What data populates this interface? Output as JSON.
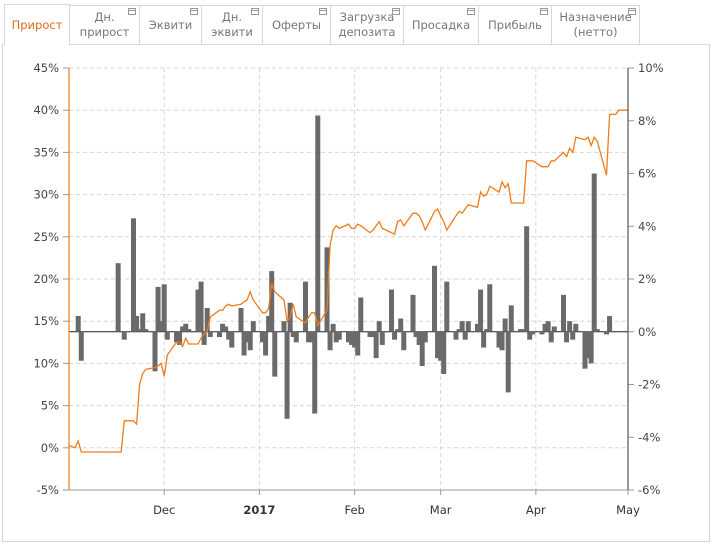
{
  "tabs": [
    {
      "label": "Прирост",
      "active": true,
      "icon": "none"
    },
    {
      "label": "Дн.\nприрост",
      "active": false,
      "icon": "minimize-icon"
    },
    {
      "label": "Эквити",
      "active": false,
      "icon": "minimize-icon"
    },
    {
      "label": "Дн.\nэквити",
      "active": false,
      "icon": "minimize-icon"
    },
    {
      "label": "Оферты",
      "active": false,
      "icon": "minimize-icon"
    },
    {
      "label": "Загрузка\nдепозита",
      "active": false,
      "icon": "minimize-icon"
    },
    {
      "label": "Просадка",
      "active": false,
      "icon": "minimize-icon"
    },
    {
      "label": "Прибыль",
      "active": false,
      "icon": "minimize-icon"
    },
    {
      "label": "Назначение\n(нетто)",
      "active": false,
      "icon": "minimize-icon"
    }
  ],
  "colors": {
    "accent": "#e06a1c",
    "line": "#f07c1c",
    "bars": "#6a6a6a",
    "grid": "#d6d6d6"
  },
  "chart_data": {
    "type": "line+bar",
    "x_range": [
      "2016-10-31",
      "2017-05-01"
    ],
    "x_ticks": [
      {
        "date": "2016-12-01",
        "label": "Dec",
        "bold": false
      },
      {
        "date": "2017-01-01",
        "label": "2017",
        "bold": true
      },
      {
        "date": "2017-02-01",
        "label": "Feb",
        "bold": false
      },
      {
        "date": "2017-03-01",
        "label": "Mar",
        "bold": false
      },
      {
        "date": "2017-04-01",
        "label": "Apr",
        "bold": false
      },
      {
        "date": "2017-05-01",
        "label": "May",
        "bold": false
      }
    ],
    "left_axis": {
      "min": -5,
      "max": 45,
      "step": 5,
      "labels": [
        "-5%",
        "0%",
        "5%",
        "10%",
        "15%",
        "20%",
        "25%",
        "30%",
        "35%",
        "40%",
        "45%"
      ]
    },
    "right_axis": {
      "min": -6,
      "max": 10,
      "step": 2,
      "labels": [
        "-6%",
        "-4%",
        "-2%",
        "0%",
        "2%",
        "4%",
        "6%",
        "8%",
        "10%"
      ]
    },
    "series": [
      {
        "kind": "line",
        "axis": "left",
        "points": [
          [
            "2016-10-31",
            0.3
          ],
          [
            "2016-11-02",
            0.0
          ],
          [
            "2016-11-03",
            0.8
          ],
          [
            "2016-11-04",
            -0.5
          ],
          [
            "2016-11-07",
            -0.5
          ],
          [
            "2016-11-10",
            -0.5
          ],
          [
            "2016-11-14",
            -0.5
          ],
          [
            "2016-11-17",
            -0.5
          ],
          [
            "2016-11-18",
            3.2
          ],
          [
            "2016-11-21",
            3.2
          ],
          [
            "2016-11-22",
            2.8
          ],
          [
            "2016-11-23",
            7.5
          ],
          [
            "2016-11-24",
            8.8
          ],
          [
            "2016-11-25",
            9.3
          ],
          [
            "2016-11-28",
            9.5
          ],
          [
            "2016-11-29",
            9.7
          ],
          [
            "2016-11-30",
            10.0
          ],
          [
            "2016-12-01",
            8.5
          ],
          [
            "2016-12-02",
            11.0
          ],
          [
            "2016-12-05",
            12.5
          ],
          [
            "2016-12-06",
            12.5
          ],
          [
            "2016-12-07",
            12.0
          ],
          [
            "2016-12-08",
            13.0
          ],
          [
            "2016-12-09",
            12.3
          ],
          [
            "2016-12-12",
            12.3
          ],
          [
            "2016-12-13",
            13.0
          ],
          [
            "2016-12-14",
            13.5
          ],
          [
            "2016-12-15",
            13.8
          ],
          [
            "2016-12-16",
            15.5
          ],
          [
            "2016-12-19",
            16.3
          ],
          [
            "2016-12-20",
            16.3
          ],
          [
            "2016-12-21",
            16.8
          ],
          [
            "2016-12-22",
            17.0
          ],
          [
            "2016-12-23",
            16.8
          ],
          [
            "2016-12-26",
            17.0
          ],
          [
            "2016-12-27",
            17.3
          ],
          [
            "2016-12-28",
            17.5
          ],
          [
            "2016-12-29",
            18.5
          ],
          [
            "2016-12-30",
            17.5
          ],
          [
            "2017-01-02",
            16.0
          ],
          [
            "2017-01-03",
            16.0
          ],
          [
            "2017-01-04",
            16.5
          ],
          [
            "2017-01-05",
            19.5
          ],
          [
            "2017-01-06",
            18.5
          ],
          [
            "2017-01-09",
            17.5
          ],
          [
            "2017-01-10",
            15.0
          ],
          [
            "2017-01-11",
            15.5
          ],
          [
            "2017-01-12",
            17.0
          ],
          [
            "2017-01-13",
            15.5
          ],
          [
            "2017-01-16",
            14.8
          ],
          [
            "2017-01-17",
            15.5
          ],
          [
            "2017-01-18",
            16.0
          ],
          [
            "2017-01-19",
            16.0
          ],
          [
            "2017-01-20",
            14.5
          ],
          [
            "2017-01-23",
            16.3
          ],
          [
            "2017-01-24",
            24.0
          ],
          [
            "2017-01-25",
            25.8
          ],
          [
            "2017-01-26",
            26.3
          ],
          [
            "2017-01-27",
            26.0
          ],
          [
            "2017-01-30",
            26.5
          ],
          [
            "2017-01-31",
            26.0
          ],
          [
            "2017-02-01",
            26.0
          ],
          [
            "2017-02-02",
            26.5
          ],
          [
            "2017-02-03",
            26.3
          ],
          [
            "2017-02-06",
            25.5
          ],
          [
            "2017-02-07",
            25.8
          ],
          [
            "2017-02-08",
            26.3
          ],
          [
            "2017-02-09",
            26.8
          ],
          [
            "2017-02-10",
            26.0
          ],
          [
            "2017-02-13",
            25.5
          ],
          [
            "2017-02-14",
            25.3
          ],
          [
            "2017-02-15",
            26.8
          ],
          [
            "2017-02-16",
            27.0
          ],
          [
            "2017-02-17",
            26.3
          ],
          [
            "2017-02-20",
            27.8
          ],
          [
            "2017-02-21",
            27.8
          ],
          [
            "2017-02-22",
            27.5
          ],
          [
            "2017-02-23",
            26.8
          ],
          [
            "2017-02-24",
            25.8
          ],
          [
            "2017-02-27",
            28.0
          ],
          [
            "2017-02-28",
            28.3
          ],
          [
            "2017-03-01",
            27.5
          ],
          [
            "2017-03-02",
            26.8
          ],
          [
            "2017-03-03",
            25.8
          ],
          [
            "2017-03-06",
            27.5
          ],
          [
            "2017-03-07",
            28.0
          ],
          [
            "2017-03-08",
            27.8
          ],
          [
            "2017-03-09",
            28.3
          ],
          [
            "2017-03-10",
            28.8
          ],
          [
            "2017-03-13",
            28.5
          ],
          [
            "2017-03-14",
            30.3
          ],
          [
            "2017-03-15",
            29.8
          ],
          [
            "2017-03-16",
            30.0
          ],
          [
            "2017-03-17",
            31.0
          ],
          [
            "2017-03-20",
            30.3
          ],
          [
            "2017-03-21",
            31.5
          ],
          [
            "2017-03-22",
            30.8
          ],
          [
            "2017-03-23",
            31.3
          ],
          [
            "2017-03-24",
            29.0
          ],
          [
            "2017-03-27",
            29.0
          ],
          [
            "2017-03-28",
            29.0
          ],
          [
            "2017-03-29",
            34.0
          ],
          [
            "2017-03-30",
            34.0
          ],
          [
            "2017-03-31",
            34.0
          ],
          [
            "2017-04-03",
            33.3
          ],
          [
            "2017-04-04",
            33.3
          ],
          [
            "2017-04-05",
            33.3
          ],
          [
            "2017-04-06",
            34.0
          ],
          [
            "2017-04-07",
            34.0
          ],
          [
            "2017-04-10",
            35.0
          ],
          [
            "2017-04-11",
            34.5
          ],
          [
            "2017-04-12",
            35.5
          ],
          [
            "2017-04-13",
            35.0
          ],
          [
            "2017-04-14",
            36.8
          ],
          [
            "2017-04-17",
            36.5
          ],
          [
            "2017-04-18",
            36.8
          ],
          [
            "2017-04-19",
            35.8
          ],
          [
            "2017-04-20",
            36.8
          ],
          [
            "2017-04-21",
            36.3
          ],
          [
            "2017-04-24",
            32.3
          ],
          [
            "2017-04-25",
            39.5
          ],
          [
            "2017-04-26",
            39.5
          ],
          [
            "2017-04-27",
            39.5
          ],
          [
            "2017-04-28",
            40.0
          ],
          [
            "2017-05-01",
            40.0
          ]
        ]
      },
      {
        "kind": "bar",
        "axis": "right",
        "points": [
          [
            "2016-11-03",
            0.6
          ],
          [
            "2016-11-04",
            -1.1
          ],
          [
            "2016-11-16",
            2.6
          ],
          [
            "2016-11-18",
            -0.3
          ],
          [
            "2016-11-21",
            4.3
          ],
          [
            "2016-11-22",
            0.6
          ],
          [
            "2016-11-23",
            0.1
          ],
          [
            "2016-11-24",
            0.7
          ],
          [
            "2016-11-25",
            0.1
          ],
          [
            "2016-11-28",
            -1.5
          ],
          [
            "2016-11-29",
            1.7
          ],
          [
            "2016-11-30",
            0.4
          ],
          [
            "2016-12-01",
            1.8
          ],
          [
            "2016-12-02",
            -0.3
          ],
          [
            "2016-12-05",
            -0.4
          ],
          [
            "2016-12-06",
            -0.5
          ],
          [
            "2016-12-07",
            0.2
          ],
          [
            "2016-12-08",
            0.3
          ],
          [
            "2016-12-09",
            0.1
          ],
          [
            "2016-12-12",
            1.6
          ],
          [
            "2016-12-13",
            1.9
          ],
          [
            "2016-12-14",
            -0.5
          ],
          [
            "2016-12-15",
            0.9
          ],
          [
            "2016-12-16",
            -0.2
          ],
          [
            "2016-12-19",
            -0.2
          ],
          [
            "2016-12-20",
            0.3
          ],
          [
            "2016-12-21",
            0.2
          ],
          [
            "2016-12-22",
            -0.3
          ],
          [
            "2016-12-23",
            -0.6
          ],
          [
            "2016-12-26",
            0.9
          ],
          [
            "2016-12-27",
            -0.9
          ],
          [
            "2016-12-28",
            -0.4
          ],
          [
            "2016-12-29",
            -0.7
          ],
          [
            "2016-12-30",
            0.4
          ],
          [
            "2017-01-02",
            -0.4
          ],
          [
            "2017-01-03",
            -0.9
          ],
          [
            "2017-01-04",
            0.6
          ],
          [
            "2017-01-05",
            2.3
          ],
          [
            "2017-01-06",
            -1.7
          ],
          [
            "2017-01-09",
            0.4
          ],
          [
            "2017-01-10",
            -3.3
          ],
          [
            "2017-01-11",
            1.1
          ],
          [
            "2017-01-12",
            -0.2
          ],
          [
            "2017-01-13",
            -0.4
          ],
          [
            "2017-01-16",
            1.9
          ],
          [
            "2017-01-17",
            -0.4
          ],
          [
            "2017-01-18",
            -0.4
          ],
          [
            "2017-01-19",
            -3.1
          ],
          [
            "2017-01-20",
            8.2
          ],
          [
            "2017-01-23",
            3.2
          ],
          [
            "2017-01-24",
            -0.7
          ],
          [
            "2017-01-25",
            0.3
          ],
          [
            "2017-01-26",
            -0.4
          ],
          [
            "2017-01-27",
            -0.3
          ],
          [
            "2017-01-30",
            -0.4
          ],
          [
            "2017-01-31",
            -0.5
          ],
          [
            "2017-02-01",
            -0.6
          ],
          [
            "2017-02-02",
            -0.9
          ],
          [
            "2017-02-03",
            1.3
          ],
          [
            "2017-02-06",
            -0.2
          ],
          [
            "2017-02-07",
            -0.2
          ],
          [
            "2017-02-08",
            -1.0
          ],
          [
            "2017-02-09",
            0.4
          ],
          [
            "2017-02-10",
            -0.5
          ],
          [
            "2017-02-13",
            1.6
          ],
          [
            "2017-02-14",
            -0.3
          ],
          [
            "2017-02-15",
            0.1
          ],
          [
            "2017-02-16",
            0.5
          ],
          [
            "2017-02-17",
            -0.7
          ],
          [
            "2017-02-20",
            1.4
          ],
          [
            "2017-02-21",
            -0.2
          ],
          [
            "2017-02-22",
            -0.5
          ],
          [
            "2017-02-23",
            -1.3
          ],
          [
            "2017-02-24",
            -0.4
          ],
          [
            "2017-02-27",
            2.5
          ],
          [
            "2017-02-28",
            -1.0
          ],
          [
            "2017-03-01",
            -1.1
          ],
          [
            "2017-03-02",
            -1.6
          ],
          [
            "2017-03-03",
            1.9
          ],
          [
            "2017-03-06",
            -0.3
          ],
          [
            "2017-03-07",
            0.1
          ],
          [
            "2017-03-08",
            0.4
          ],
          [
            "2017-03-09",
            -0.3
          ],
          [
            "2017-03-10",
            0.4
          ],
          [
            "2017-03-13",
            0.3
          ],
          [
            "2017-03-14",
            1.6
          ],
          [
            "2017-03-15",
            -0.6
          ],
          [
            "2017-03-16",
            0.1
          ],
          [
            "2017-03-17",
            1.8
          ],
          [
            "2017-03-20",
            -0.6
          ],
          [
            "2017-03-21",
            -0.7
          ],
          [
            "2017-03-22",
            0.5
          ],
          [
            "2017-03-23",
            -2.3
          ],
          [
            "2017-03-24",
            1.0
          ],
          [
            "2017-03-27",
            0.1
          ],
          [
            "2017-03-28",
            0.1
          ],
          [
            "2017-03-29",
            4.0
          ],
          [
            "2017-03-30",
            -0.3
          ],
          [
            "2017-03-31",
            -0.1
          ],
          [
            "2017-04-03",
            -0.1
          ],
          [
            "2017-04-04",
            0.3
          ],
          [
            "2017-04-05",
            0.4
          ],
          [
            "2017-04-06",
            -0.4
          ],
          [
            "2017-04-07",
            0.2
          ],
          [
            "2017-04-10",
            1.4
          ],
          [
            "2017-04-11",
            -0.4
          ],
          [
            "2017-04-12",
            0.4
          ],
          [
            "2017-04-13",
            -0.3
          ],
          [
            "2017-04-14",
            0.3
          ],
          [
            "2017-04-17",
            -1.4
          ],
          [
            "2017-04-18",
            -1.0
          ],
          [
            "2017-04-19",
            -1.2
          ],
          [
            "2017-04-20",
            6.0
          ],
          [
            "2017-04-21",
            0.1
          ],
          [
            "2017-04-24",
            -0.1
          ],
          [
            "2017-04-25",
            0.6
          ]
        ]
      }
    ]
  }
}
